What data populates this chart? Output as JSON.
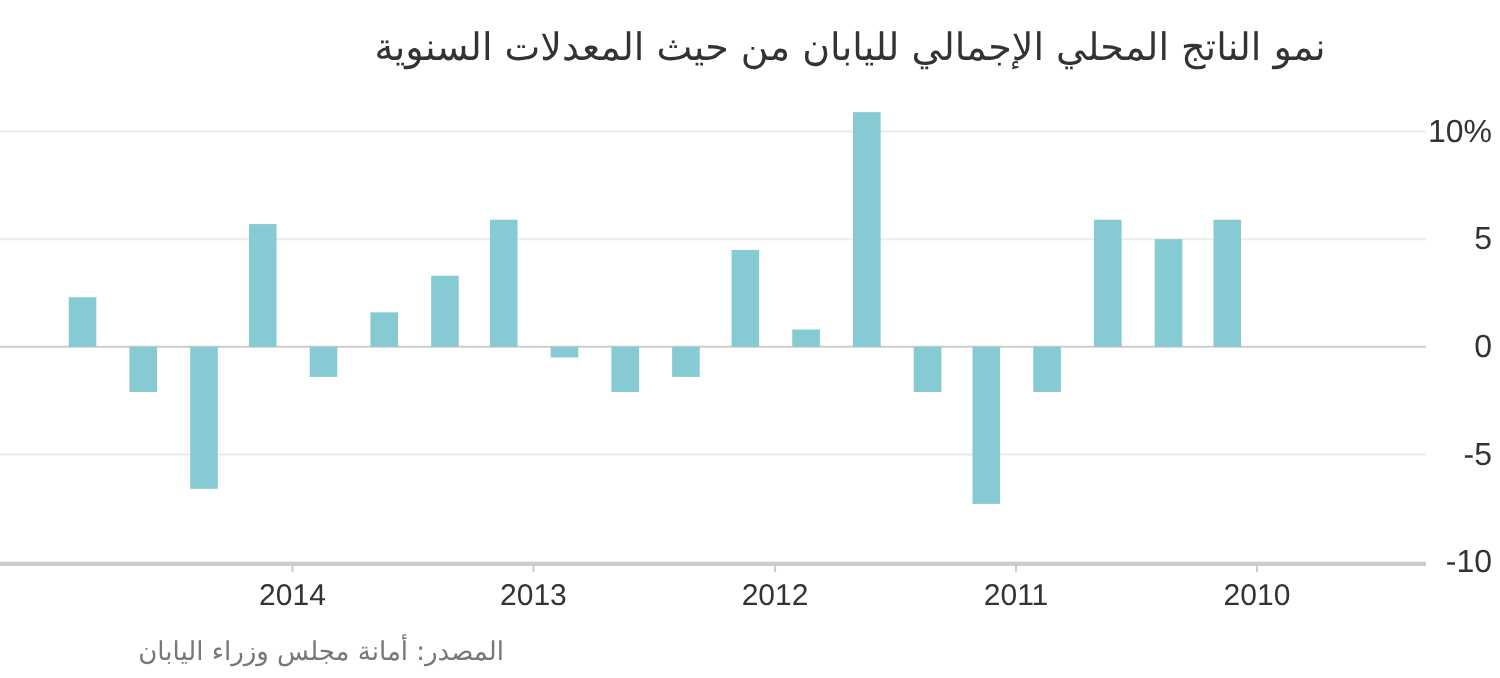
{
  "chart_data": {
    "type": "bar",
    "title": "نمو الناتج المحلي الإجمالي لليابان من حيث المعدلات السنوية",
    "x": [
      "2014-11-15",
      "2014-08-15",
      "2014-05-15",
      "2014-02-15",
      "2013-11-15",
      "2013-08-15",
      "2013-05-15",
      "2013-02-15",
      "2012-11-15",
      "2012-08-15",
      "2012-05-15",
      "2012-02-15",
      "2011-11-15",
      "2011-08-15",
      "2011-05-15",
      "2011-02-15",
      "2010-11-15",
      "2010-08-15",
      "2010-05-15",
      "2010-02-15"
    ],
    "values": [
      2.3,
      -2.1,
      -6.6,
      5.7,
      -1.4,
      1.6,
      3.3,
      5.9,
      -0.5,
      -2.1,
      -1.4,
      4.5,
      0.8,
      10.9,
      -2.1,
      -7.3,
      -2.1,
      5.9,
      5.0,
      5.9
    ],
    "color": "#86cad4",
    "xlim": [
      "2015-03-20",
      "2009-04-20"
    ],
    "xticks": [
      {
        "value": "2014",
        "label": "2014"
      },
      {
        "value": "2013",
        "label": "2013"
      },
      {
        "value": "2012",
        "label": "2012"
      },
      {
        "value": "2011",
        "label": "2011"
      },
      {
        "value": "2010",
        "label": "2010"
      }
    ],
    "ylim": [
      -10,
      11
    ],
    "yticks": [
      {
        "value": 10,
        "label": "10%"
      },
      5,
      0,
      -5,
      -10
    ],
    "grid": "y",
    "annotations": [
      "المصدر: أمانة مجلس وزراء اليابان"
    ]
  }
}
